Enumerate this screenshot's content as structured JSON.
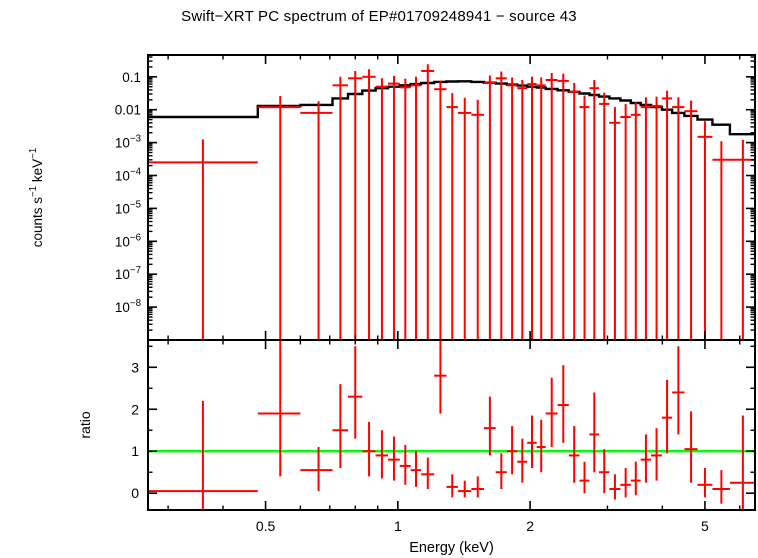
{
  "title": "Swift−XRT PC spectrum of EP#01709248941 − source 43",
  "chart_data": {
    "type": "scatter",
    "xlabel": "Energy (keV)",
    "xscale": "log",
    "xlim": [
      0.27,
      6.5
    ],
    "xticks": [
      {
        "v": 0.5,
        "label": "0.5"
      },
      {
        "v": 1,
        "label": "1"
      },
      {
        "v": 2,
        "label": "2"
      },
      {
        "v": 5,
        "label": "5"
      }
    ],
    "panels": [
      {
        "name": "spectrum",
        "ylabel": "counts s^−1 keV^−1",
        "yscale": "log",
        "ylim": [
          1e-09,
          0.46
        ],
        "yticks": [
          {
            "v": 0.1,
            "label": "0.1"
          },
          {
            "v": 0.01,
            "label": "0.01"
          },
          {
            "v": 0.001,
            "label": "10^−3"
          },
          {
            "v": 0.0001,
            "label": "10^−4"
          },
          {
            "v": 1e-05,
            "label": "10^−5"
          },
          {
            "v": 1e-06,
            "label": "10^−6"
          },
          {
            "v": 1e-07,
            "label": "10^−7"
          },
          {
            "v": 1e-08,
            "label": "10^−8"
          }
        ],
        "model": {
          "color": "#000000",
          "edges": [
            0.27,
            0.48,
            0.6,
            0.71,
            0.77,
            0.83,
            0.89,
            0.95,
            1.01,
            1.07,
            1.13,
            1.21,
            1.29,
            1.37,
            1.47,
            1.57,
            1.67,
            1.77,
            1.87,
            1.97,
            2.07,
            2.17,
            2.31,
            2.45,
            2.59,
            2.73,
            2.87,
            3.03,
            3.21,
            3.39,
            3.57,
            3.77,
            3.99,
            4.21,
            4.49,
            4.81,
            5.2,
            5.7,
            6.5
          ],
          "values": [
            0.006,
            0.013,
            0.014,
            0.022,
            0.03,
            0.038,
            0.045,
            0.05,
            0.055,
            0.06,
            0.065,
            0.07,
            0.072,
            0.073,
            0.07,
            0.066,
            0.062,
            0.058,
            0.054,
            0.05,
            0.047,
            0.043,
            0.039,
            0.035,
            0.031,
            0.028,
            0.025,
            0.022,
            0.019,
            0.016,
            0.014,
            0.012,
            0.01,
            0.008,
            0.0065,
            0.005,
            0.0035,
            0.0018
          ]
        },
        "points": {
          "color": "#ff0000",
          "columns": [
            "E_keV",
            "E_lo",
            "E_hi",
            "rate",
            "err_up",
            "err_dn (null = extends to zero)"
          ],
          "rows": [
            [
              0.36,
              0.27,
              0.48,
              0.00025,
              0.001,
              null
            ],
            [
              0.54,
              0.48,
              0.6,
              0.012,
              0.014,
              null
            ],
            [
              0.66,
              0.6,
              0.71,
              0.008,
              0.01,
              null
            ],
            [
              0.74,
              0.71,
              0.77,
              0.055,
              0.045,
              null
            ],
            [
              0.8,
              0.77,
              0.83,
              0.09,
              0.06,
              null
            ],
            [
              0.86,
              0.83,
              0.89,
              0.1,
              0.07,
              null
            ],
            [
              0.92,
              0.89,
              0.95,
              0.05,
              0.04,
              null
            ],
            [
              0.98,
              0.95,
              1.01,
              0.062,
              0.045,
              null
            ],
            [
              1.04,
              1.01,
              1.07,
              0.048,
              0.04,
              null
            ],
            [
              1.1,
              1.07,
              1.13,
              0.055,
              0.045,
              null
            ],
            [
              1.17,
              1.13,
              1.21,
              0.15,
              0.09,
              null
            ],
            [
              1.25,
              1.21,
              1.29,
              0.042,
              0.035,
              null
            ],
            [
              1.33,
              1.29,
              1.37,
              0.012,
              0.02,
              null
            ],
            [
              1.42,
              1.37,
              1.47,
              0.008,
              0.015,
              null
            ],
            [
              1.52,
              1.47,
              1.57,
              0.007,
              0.013,
              null
            ],
            [
              1.62,
              1.57,
              1.67,
              0.065,
              0.045,
              null
            ],
            [
              1.72,
              1.67,
              1.77,
              0.09,
              0.055,
              null
            ],
            [
              1.82,
              1.77,
              1.87,
              0.055,
              0.04,
              null
            ],
            [
              1.92,
              1.87,
              1.97,
              0.045,
              0.035,
              null
            ],
            [
              2.02,
              1.97,
              2.07,
              0.06,
              0.04,
              null
            ],
            [
              2.12,
              2.07,
              2.17,
              0.055,
              0.04,
              null
            ],
            [
              2.24,
              2.17,
              2.31,
              0.08,
              0.05,
              null
            ],
            [
              2.38,
              2.31,
              2.45,
              0.075,
              0.05,
              null
            ],
            [
              2.52,
              2.45,
              2.59,
              0.035,
              0.03,
              null
            ],
            [
              2.66,
              2.59,
              2.73,
              0.012,
              0.015,
              null
            ],
            [
              2.8,
              2.73,
              2.87,
              0.045,
              0.035,
              null
            ],
            [
              2.95,
              2.87,
              3.03,
              0.015,
              0.018,
              null
            ],
            [
              3.12,
              3.03,
              3.21,
              0.004,
              0.008,
              null
            ],
            [
              3.3,
              3.21,
              3.39,
              0.006,
              0.009,
              null
            ],
            [
              3.48,
              3.39,
              3.57,
              0.007,
              0.01,
              null
            ],
            [
              3.67,
              3.57,
              3.77,
              0.012,
              0.012,
              null
            ],
            [
              3.88,
              3.77,
              3.99,
              0.013,
              0.012,
              null
            ],
            [
              4.1,
              3.99,
              4.21,
              0.022,
              0.016,
              null
            ],
            [
              4.35,
              4.21,
              4.49,
              0.012,
              0.012,
              null
            ],
            [
              4.65,
              4.49,
              4.81,
              0.009,
              0.01,
              null
            ],
            [
              5.0,
              4.81,
              5.2,
              0.0015,
              0.003,
              null
            ],
            [
              5.45,
              5.2,
              5.7,
              0.0003,
              0.0008,
              null
            ],
            [
              6.1,
              5.7,
              6.5,
              0.0003,
              0.0009,
              null
            ]
          ]
        }
      },
      {
        "name": "ratio",
        "ylabel": "ratio",
        "yscale": "linear",
        "ylim": [
          -0.4,
          3.65
        ],
        "yticks": [
          {
            "v": 0,
            "label": "0"
          },
          {
            "v": 1,
            "label": "1"
          },
          {
            "v": 2,
            "label": "2"
          },
          {
            "v": 3,
            "label": "3"
          }
        ],
        "reference_line": {
          "y": 1,
          "color": "#00ff00"
        },
        "points": {
          "color": "#ff0000",
          "columns": [
            "E_keV",
            "E_lo",
            "E_hi",
            "ratio",
            "err_up (null = off top)",
            "err_dn (null = off bottom)"
          ],
          "rows": [
            [
              0.36,
              0.27,
              0.48,
              0.05,
              2.15,
              null
            ],
            [
              0.54,
              0.48,
              0.6,
              1.9,
              null,
              1.5
            ],
            [
              0.66,
              0.6,
              0.71,
              0.55,
              0.55,
              0.5
            ],
            [
              0.74,
              0.71,
              0.77,
              1.5,
              1.1,
              0.9
            ],
            [
              0.8,
              0.77,
              0.83,
              2.3,
              1.2,
              1.0
            ],
            [
              0.86,
              0.83,
              0.89,
              1.0,
              0.7,
              0.6
            ],
            [
              0.92,
              0.89,
              0.95,
              0.9,
              0.6,
              0.55
            ],
            [
              0.98,
              0.95,
              1.01,
              0.8,
              0.55,
              0.5
            ],
            [
              1.04,
              1.01,
              1.07,
              0.65,
              0.5,
              0.45
            ],
            [
              1.1,
              1.07,
              1.13,
              0.55,
              0.45,
              0.4
            ],
            [
              1.17,
              1.13,
              1.21,
              0.45,
              0.4,
              0.35
            ],
            [
              1.25,
              1.21,
              1.29,
              2.8,
              0.9,
              0.9
            ],
            [
              1.33,
              1.29,
              1.37,
              0.15,
              0.3,
              0.25
            ],
            [
              1.42,
              1.37,
              1.47,
              0.05,
              0.25,
              0.15
            ],
            [
              1.52,
              1.47,
              1.57,
              0.1,
              0.3,
              0.2
            ],
            [
              1.62,
              1.57,
              1.67,
              1.55,
              0.75,
              0.65
            ],
            [
              1.72,
              1.67,
              1.77,
              0.5,
              0.45,
              0.4
            ],
            [
              1.82,
              1.77,
              1.87,
              1.0,
              0.6,
              0.55
            ],
            [
              1.92,
              1.87,
              1.97,
              0.75,
              0.55,
              0.5
            ],
            [
              2.02,
              1.97,
              2.07,
              1.2,
              0.65,
              0.6
            ],
            [
              2.12,
              2.07,
              2.17,
              1.1,
              0.65,
              0.6
            ],
            [
              2.24,
              2.17,
              2.31,
              1.9,
              0.85,
              0.8
            ],
            [
              2.38,
              2.31,
              2.45,
              2.1,
              0.95,
              0.9
            ],
            [
              2.52,
              2.45,
              2.59,
              0.9,
              0.7,
              0.65
            ],
            [
              2.66,
              2.59,
              2.73,
              0.3,
              0.45,
              0.3
            ],
            [
              2.8,
              2.73,
              2.87,
              1.4,
              1.0,
              0.9
            ],
            [
              2.95,
              2.87,
              3.03,
              0.5,
              0.55,
              0.5
            ],
            [
              3.12,
              3.03,
              3.21,
              0.1,
              0.35,
              0.25
            ],
            [
              3.3,
              3.21,
              3.39,
              0.2,
              0.4,
              0.3
            ],
            [
              3.48,
              3.39,
              3.57,
              0.3,
              0.45,
              0.35
            ],
            [
              3.67,
              3.57,
              3.77,
              0.8,
              0.6,
              0.55
            ],
            [
              3.88,
              3.77,
              3.99,
              0.9,
              0.65,
              0.6
            ],
            [
              4.1,
              3.99,
              4.21,
              1.8,
              0.9,
              0.85
            ],
            [
              4.35,
              4.21,
              4.49,
              2.4,
              1.1,
              1.0
            ],
            [
              4.65,
              4.49,
              4.81,
              1.05,
              0.9,
              0.8
            ],
            [
              5.0,
              4.81,
              5.2,
              0.2,
              0.4,
              0.3
            ],
            [
              5.45,
              5.2,
              5.7,
              0.1,
              0.45,
              0.35
            ],
            [
              6.1,
              5.7,
              6.5,
              0.25,
              1.6,
              null
            ]
          ]
        }
      }
    ]
  }
}
